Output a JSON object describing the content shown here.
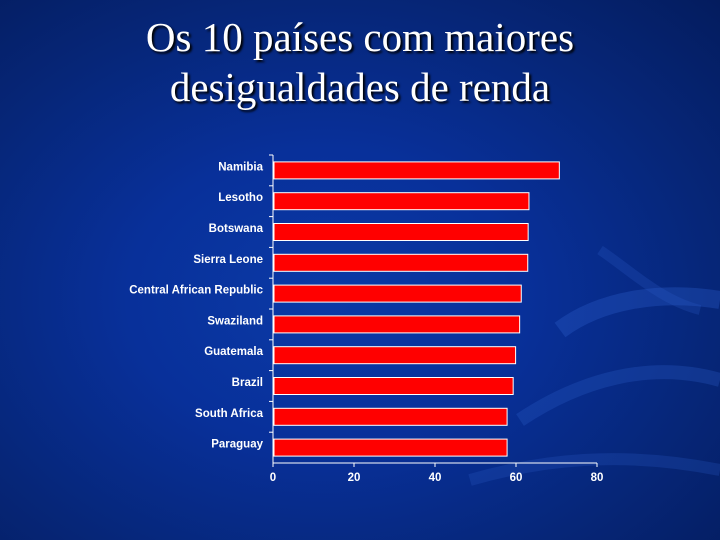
{
  "slide": {
    "title_line1": "Os 10 países com maiores",
    "title_line2": "desigualdades de renda"
  },
  "colors": {
    "bar": "#ff0000",
    "bar_edge": "#ffffff",
    "text": "#ffffff"
  },
  "chart_data": {
    "type": "bar",
    "orientation": "horizontal",
    "categories": [
      "Namibia",
      "Lesotho",
      "Botswana",
      "Sierra Leone",
      "Central African Republic",
      "Swaziland",
      "Guatemala",
      "Brazil",
      "South Africa",
      "Paraguay"
    ],
    "values": [
      70.7,
      63.2,
      63.0,
      62.9,
      61.3,
      60.9,
      59.9,
      59.3,
      57.8,
      57.8
    ],
    "x_ticks": [
      0,
      20,
      40,
      60,
      80
    ],
    "xlim": [
      0,
      80
    ],
    "title": "",
    "xlabel": "",
    "ylabel": "",
    "grid": false,
    "legend": "none"
  }
}
